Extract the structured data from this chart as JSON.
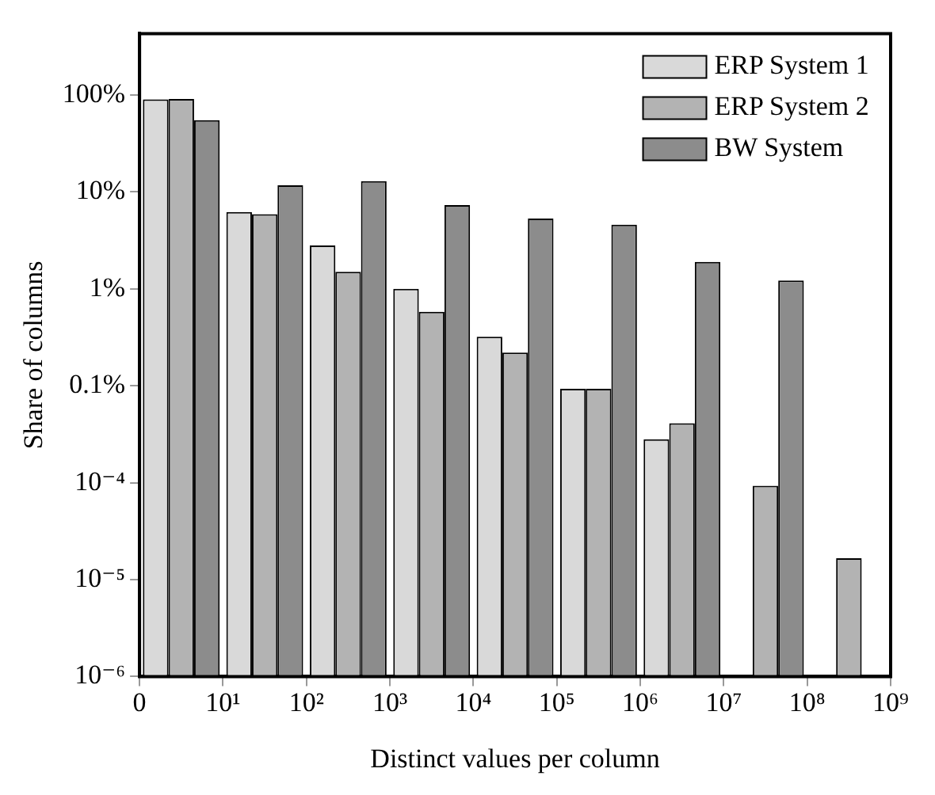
{
  "chart_data": {
    "type": "bar",
    "xlabel": "Distinct values per column",
    "ylabel": "Share of columns",
    "categories": [
      null,
      null,
      null,
      null,
      null,
      null,
      null,
      null,
      null
    ],
    "annotations": [
      "0",
      "10¹",
      "10²",
      "10³",
      "10⁴",
      "10⁵",
      "10⁶",
      "10⁷",
      "10⁸",
      "10⁹"
    ],
    "ylim": [
      1e-06,
      4.3
    ],
    "yticks": [
      {
        "value": 1e-06,
        "label": "10⁻⁶"
      },
      {
        "value": 1e-05,
        "label": "10⁻⁵"
      },
      {
        "value": 0.0001,
        "label": "10⁻⁴"
      },
      {
        "value": 0.001,
        "label": "0.1%"
      },
      {
        "value": 0.01,
        "label": "1%"
      },
      {
        "value": 0.1,
        "label": "10%"
      },
      {
        "value": 1,
        "label": "100%"
      }
    ],
    "log": "y",
    "grid": false,
    "legend": "top right",
    "series": [
      {
        "name": "ERP System 1",
        "color": "#d9d9d9",
        "values": [
          0.9,
          0.062,
          0.028,
          0.01,
          0.0032,
          0.00093,
          0.00028,
          null,
          null
        ]
      },
      {
        "name": "ERP System 2",
        "color": "#b3b3b3",
        "values": [
          0.91,
          0.059,
          0.015,
          0.0058,
          0.0022,
          0.00093,
          0.00041,
          9.3e-05,
          1.66e-05
        ]
      },
      {
        "name": "BW System",
        "color": "#8c8c8c",
        "values": [
          0.55,
          0.117,
          0.129,
          0.073,
          0.053,
          0.046,
          0.019,
          0.0122,
          null
        ]
      }
    ]
  }
}
